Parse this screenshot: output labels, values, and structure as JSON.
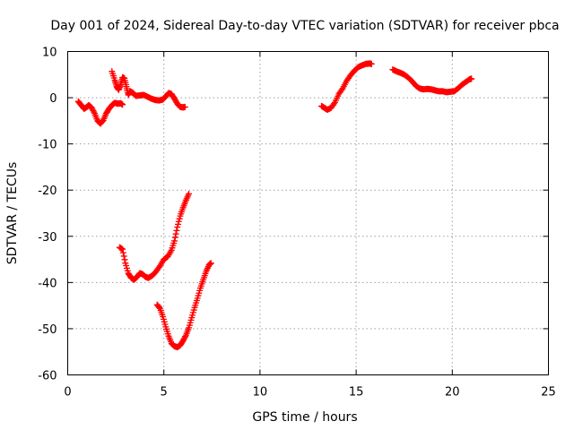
{
  "chart_data": {
    "type": "scatter",
    "title": "Day 001 of 2024, Sidereal Day-to-day VTEC variation (SDTVAR) for receiver pbca",
    "xlabel": "GPS time / hours",
    "ylabel": "SDTVAR / TECUs",
    "xlim": [
      0,
      25
    ],
    "ylim": [
      -60,
      10
    ],
    "xticks": [
      0,
      5,
      10,
      15,
      20,
      25
    ],
    "yticks": [
      10,
      0,
      -10,
      -20,
      -30,
      -40,
      -50,
      -60
    ],
    "xtick_labels": [
      "0",
      "5",
      "10",
      "15",
      "20",
      "25"
    ],
    "ytick_labels": [
      "10",
      "0",
      "-10",
      "-20",
      "-30",
      "-40",
      "-50",
      "-60"
    ],
    "grid": true,
    "marker": "plus",
    "color": "#ff0000",
    "series": [
      {
        "points": [
          [
            0.55,
            -0.8
          ],
          [
            0.7,
            -1.6
          ],
          [
            0.85,
            -2.4
          ],
          [
            1.0,
            -2.0
          ],
          [
            1.1,
            -1.6
          ],
          [
            1.25,
            -2.2
          ],
          [
            1.4,
            -3.4
          ],
          [
            1.55,
            -5.0
          ],
          [
            1.7,
            -5.6
          ],
          [
            1.85,
            -4.9
          ],
          [
            2.0,
            -3.4
          ],
          [
            2.15,
            -2.4
          ],
          [
            2.3,
            -1.6
          ],
          [
            2.45,
            -1.1
          ],
          [
            2.6,
            -1.3
          ],
          [
            2.75,
            -1.2
          ],
          [
            2.85,
            -1.5
          ]
        ]
      },
      {
        "points": [
          [
            2.3,
            5.7
          ],
          [
            2.45,
            3.8
          ],
          [
            2.55,
            2.4
          ],
          [
            2.65,
            1.7
          ],
          [
            2.75,
            2.8
          ],
          [
            2.85,
            4.4
          ],
          [
            2.95,
            4.2
          ],
          [
            3.05,
            2.4
          ],
          [
            3.15,
            0.6
          ],
          [
            3.25,
            1.4
          ],
          [
            3.4,
            1.0
          ],
          [
            3.55,
            0.4
          ],
          [
            3.75,
            0.5
          ],
          [
            3.95,
            0.6
          ],
          [
            4.15,
            0.2
          ],
          [
            4.35,
            -0.2
          ],
          [
            4.55,
            -0.5
          ],
          [
            4.75,
            -0.6
          ],
          [
            4.95,
            -0.4
          ],
          [
            5.1,
            0.3
          ],
          [
            5.25,
            1.0
          ],
          [
            5.4,
            0.8
          ],
          [
            5.55,
            -0.2
          ],
          [
            5.7,
            -1.3
          ],
          [
            5.85,
            -2.0
          ],
          [
            6.0,
            -2.1
          ],
          [
            6.1,
            -2.0
          ]
        ]
      },
      {
        "points": [
          [
            2.7,
            -32.4
          ],
          [
            2.85,
            -32.8
          ],
          [
            3.0,
            -35.8
          ],
          [
            3.15,
            -38.0
          ],
          [
            3.3,
            -39.0
          ],
          [
            3.45,
            -39.4
          ],
          [
            3.6,
            -38.8
          ],
          [
            3.75,
            -38.0
          ],
          [
            3.9,
            -38.2
          ],
          [
            4.05,
            -38.8
          ],
          [
            4.2,
            -39.0
          ],
          [
            4.4,
            -38.5
          ],
          [
            4.6,
            -37.6
          ],
          [
            4.8,
            -36.4
          ],
          [
            5.0,
            -35.0
          ],
          [
            5.2,
            -34.4
          ],
          [
            5.4,
            -33.0
          ],
          [
            5.55,
            -31.0
          ],
          [
            5.7,
            -28.0
          ],
          [
            5.85,
            -25.6
          ],
          [
            6.0,
            -23.8
          ],
          [
            6.15,
            -22.2
          ],
          [
            6.3,
            -20.8
          ]
        ]
      },
      {
        "points": [
          [
            4.65,
            -44.8
          ],
          [
            4.8,
            -45.6
          ],
          [
            4.95,
            -47.4
          ],
          [
            5.1,
            -49.6
          ],
          [
            5.25,
            -51.6
          ],
          [
            5.4,
            -53.2
          ],
          [
            5.55,
            -53.8
          ],
          [
            5.7,
            -54.0
          ],
          [
            5.85,
            -53.6
          ],
          [
            6.0,
            -52.6
          ],
          [
            6.15,
            -51.4
          ],
          [
            6.3,
            -49.8
          ],
          [
            6.45,
            -47.6
          ],
          [
            6.6,
            -45.4
          ],
          [
            6.75,
            -43.4
          ],
          [
            6.9,
            -41.2
          ],
          [
            7.05,
            -39.4
          ],
          [
            7.2,
            -37.6
          ],
          [
            7.35,
            -36.2
          ],
          [
            7.45,
            -35.8
          ]
        ]
      },
      {
        "points": [
          [
            13.2,
            -1.8
          ],
          [
            13.35,
            -2.2
          ],
          [
            13.5,
            -2.6
          ],
          [
            13.7,
            -2.2
          ],
          [
            13.9,
            -1.0
          ],
          [
            14.1,
            0.8
          ],
          [
            14.3,
            2.0
          ],
          [
            14.5,
            3.6
          ],
          [
            14.7,
            4.8
          ],
          [
            14.9,
            5.8
          ],
          [
            15.1,
            6.6
          ],
          [
            15.3,
            7.0
          ],
          [
            15.5,
            7.3
          ],
          [
            15.7,
            7.4
          ],
          [
            15.8,
            7.3
          ]
        ]
      },
      {
        "points": [
          [
            16.9,
            6.1
          ],
          [
            17.1,
            5.7
          ],
          [
            17.3,
            5.4
          ],
          [
            17.5,
            5.0
          ],
          [
            17.7,
            4.4
          ],
          [
            17.9,
            3.6
          ],
          [
            18.1,
            2.6
          ],
          [
            18.3,
            2.0
          ],
          [
            18.5,
            1.8
          ],
          [
            18.7,
            1.9
          ],
          [
            18.9,
            1.8
          ],
          [
            19.1,
            1.6
          ],
          [
            19.3,
            1.4
          ],
          [
            19.5,
            1.4
          ],
          [
            19.7,
            1.2
          ],
          [
            19.9,
            1.3
          ],
          [
            20.1,
            1.4
          ],
          [
            20.3,
            2.0
          ],
          [
            20.5,
            2.8
          ],
          [
            20.7,
            3.4
          ],
          [
            20.9,
            4.0
          ],
          [
            21.0,
            4.1
          ]
        ]
      }
    ]
  }
}
